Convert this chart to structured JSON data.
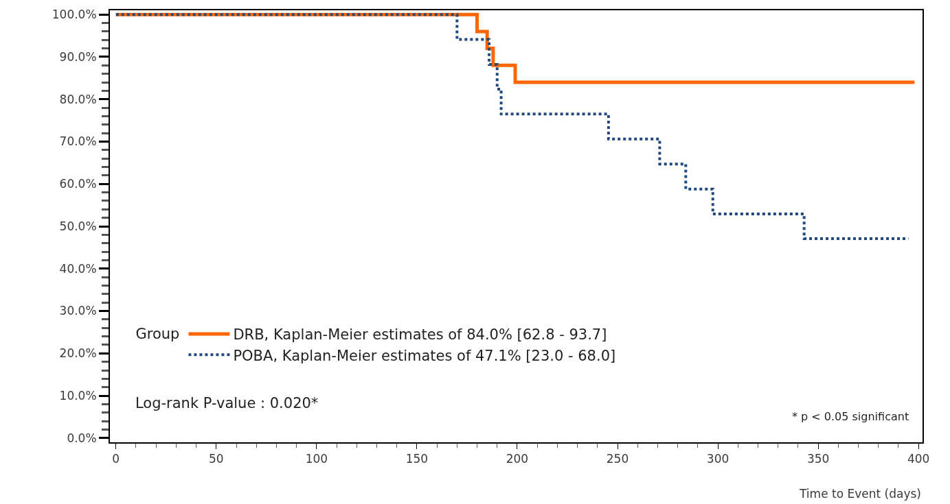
{
  "chart_data": {
    "type": "step",
    "xlabel": "Time to Event (days)",
    "legend_title": "Group",
    "series": [
      {
        "name": "DRB, Kaplan-Meier estimates of 84.0% [62.8 - 93.7]",
        "color": "#ff6600",
        "line_style": "solid",
        "x": [
          0,
          180,
          185,
          188,
          199,
          398
        ],
        "values": [
          100,
          96,
          92,
          88,
          84,
          84
        ]
      },
      {
        "name": "POBA, Kaplan-Meier estimates of 47.1% [23.0 - 68.0]",
        "color": "#1f497d",
        "line_style": "dotted",
        "x": [
          0,
          170,
          186,
          190,
          192,
          245.5,
          271,
          284,
          297.5,
          343,
          395
        ],
        "values": [
          100,
          94.1,
          88.2,
          82.4,
          76.5,
          70.6,
          64.7,
          58.8,
          52.9,
          47.1,
          47.1
        ]
      }
    ],
    "annotations": [
      "Log-rank P-value : 0.020*",
      "* p < 0.05 significant"
    ],
    "xlim": [
      -3,
      402
    ],
    "xticks": [
      0,
      50,
      100,
      150,
      200,
      250,
      300,
      350,
      400
    ],
    "ylim": [
      -1,
      101
    ],
    "yticks": [
      {
        "value": 0,
        "label": "0.0%"
      },
      {
        "value": 10,
        "label": "10.0%"
      },
      {
        "value": 20,
        "label": "20.0%"
      },
      {
        "value": 30,
        "label": "30.0%"
      },
      {
        "value": 40,
        "label": "40.0%"
      },
      {
        "value": 50,
        "label": "50.0%"
      },
      {
        "value": 60,
        "label": "60.0%"
      },
      {
        "value": 70,
        "label": "70.0%"
      },
      {
        "value": 80,
        "label": "80.0%"
      },
      {
        "value": 90,
        "label": "90.0%"
      },
      {
        "value": 100,
        "label": "100.0%"
      }
    ],
    "grid": false,
    "legend": "bottom left",
    "marker": "none"
  }
}
